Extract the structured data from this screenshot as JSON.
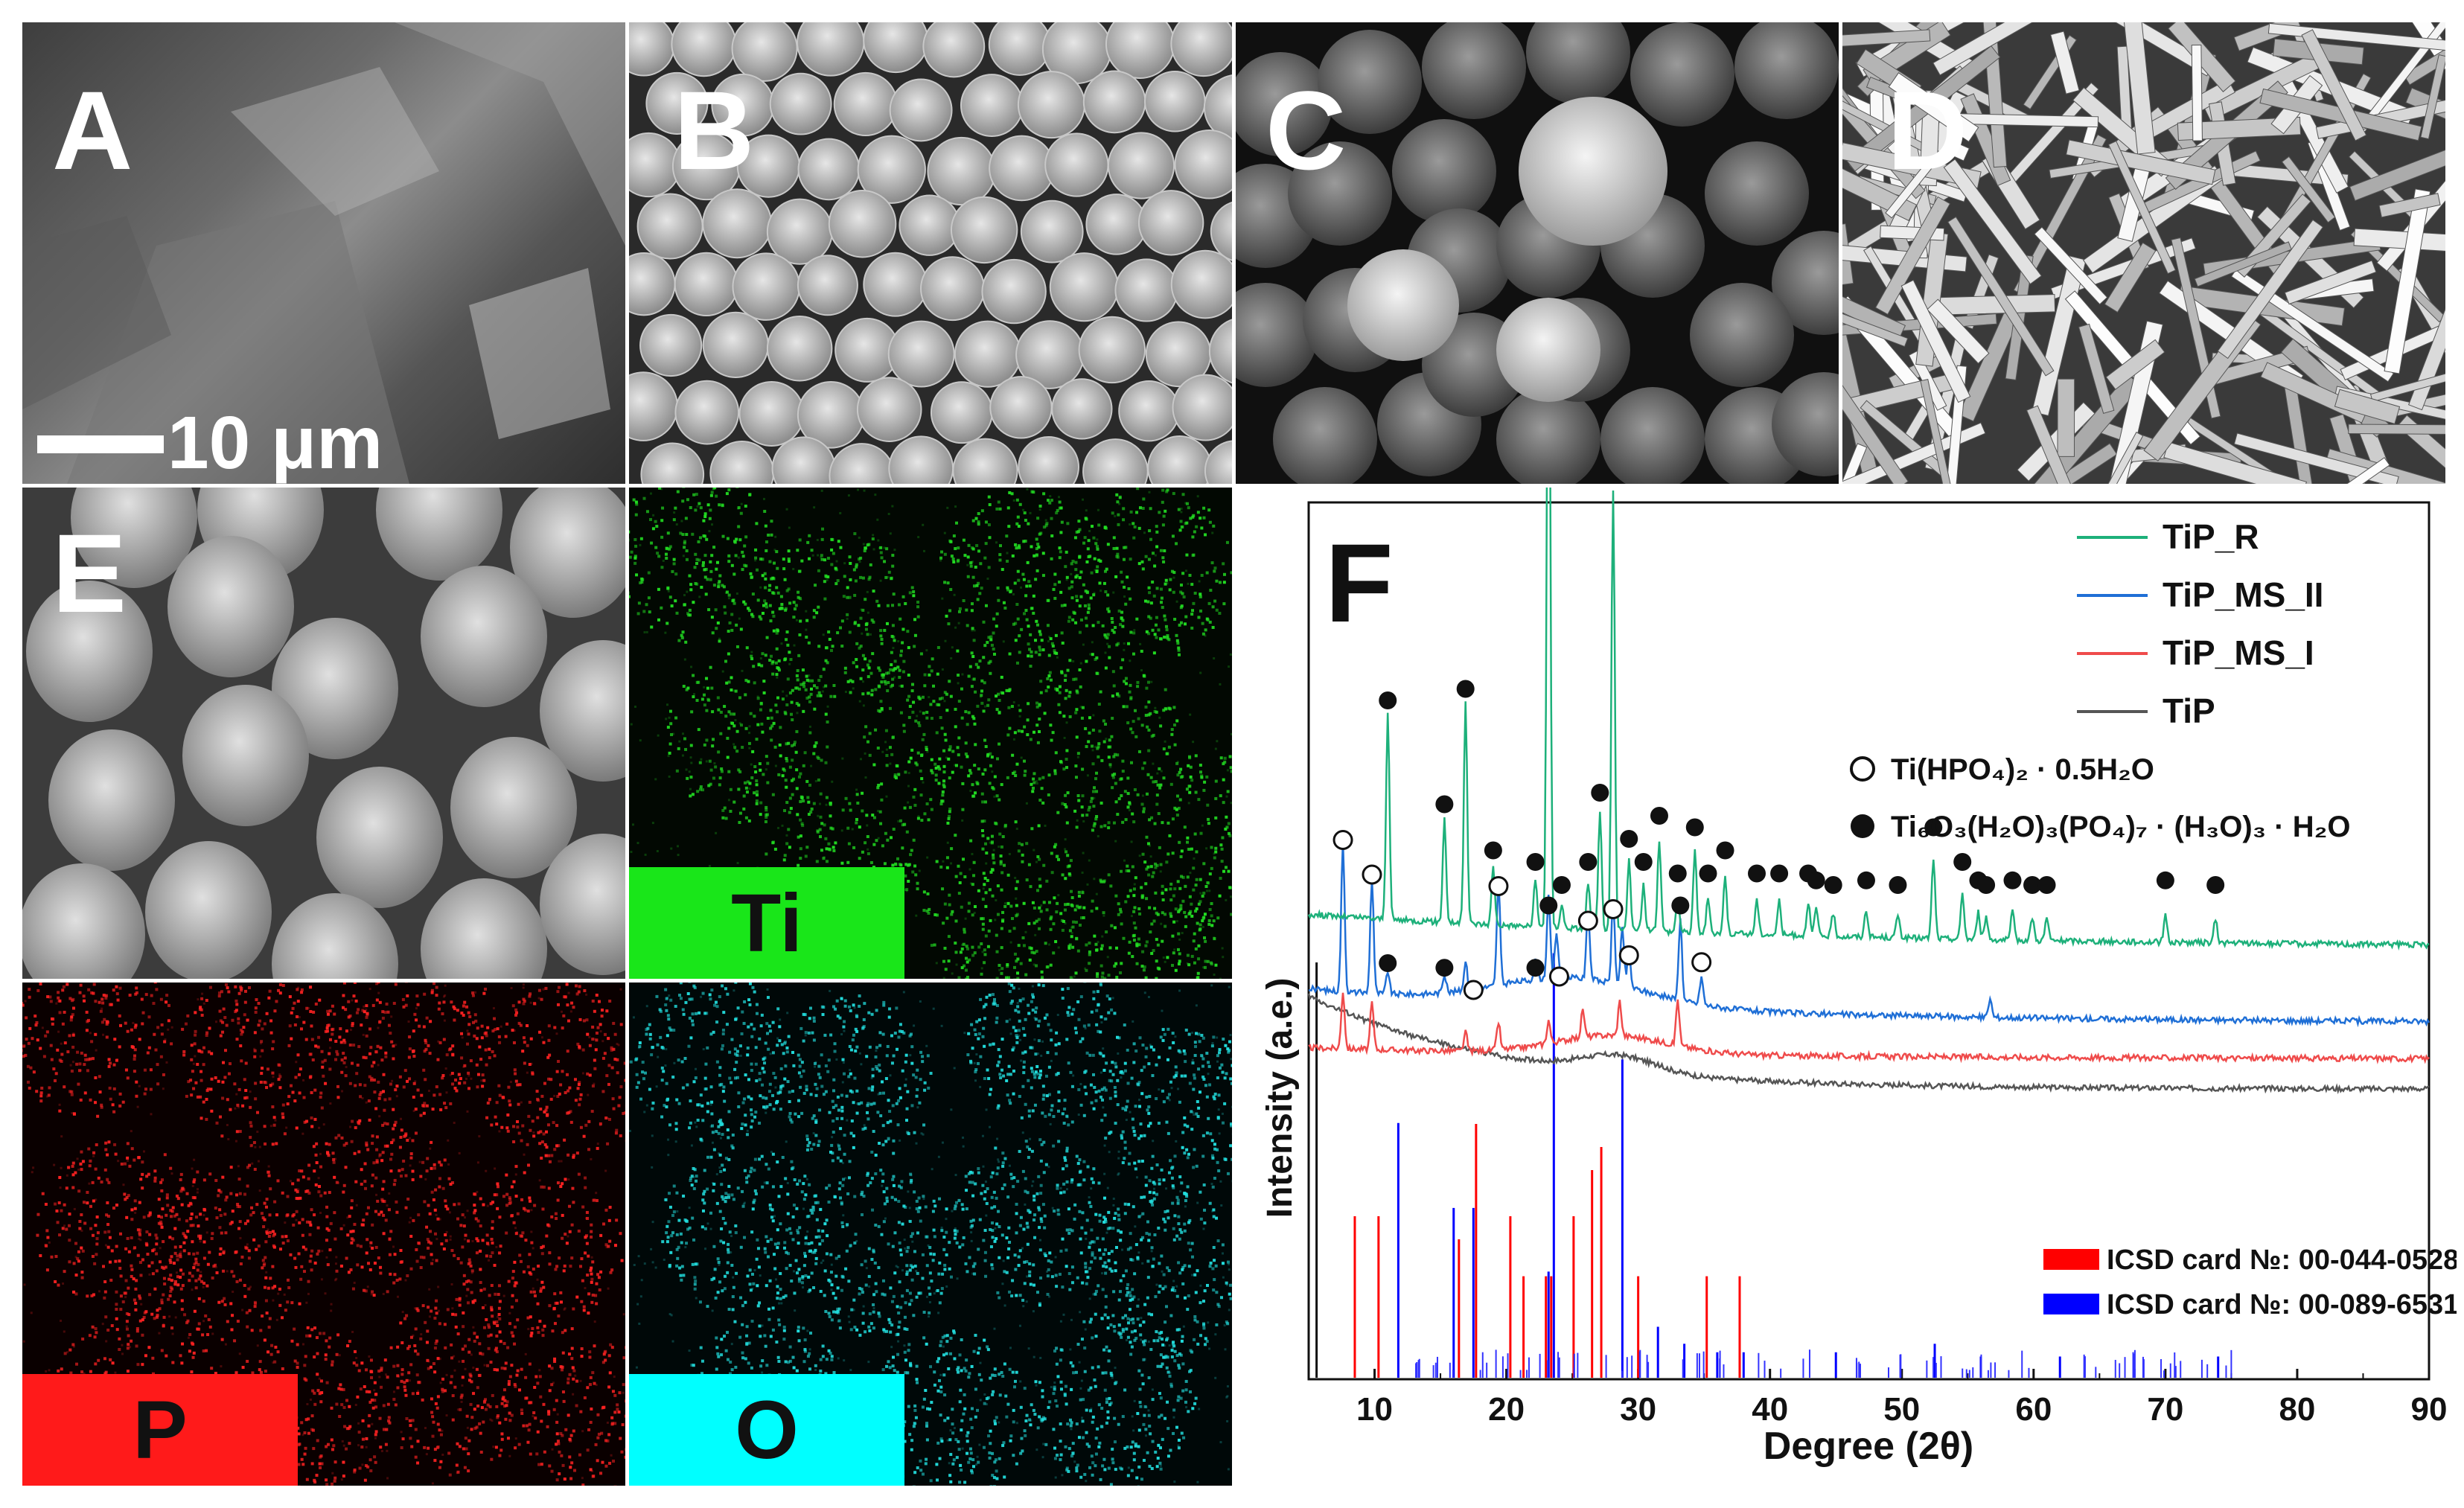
{
  "panels": {
    "A": {
      "label": "A",
      "scale_bar": "10 μm"
    },
    "B": {
      "label": "B"
    },
    "C": {
      "label": "C"
    },
    "D": {
      "label": "D"
    },
    "E": {
      "label": "E"
    },
    "ti_map": {
      "element": "Ti",
      "color": "#19e619"
    },
    "p_map": {
      "element": "P",
      "color": "#ff1a1a"
    },
    "o_map": {
      "element": "O",
      "color": "#00ffff"
    }
  },
  "chart_data": {
    "type": "line",
    "panel_label": "F",
    "xlabel": "Degree (2θ)",
    "ylabel": "Intensity (a.e.)",
    "xlim": [
      5,
      90
    ],
    "x_ticks": [
      10,
      20,
      30,
      40,
      50,
      60,
      70,
      80,
      90
    ],
    "x_tick_labels": [
      "10",
      "20",
      "30",
      "40",
      "50",
      "60",
      "70",
      "80",
      "90"
    ],
    "legend": [
      {
        "name": "TiP_R",
        "color": "#1db07a"
      },
      {
        "name": "TiP_MS_II",
        "color": "#1f6fd6"
      },
      {
        "name": "TiP_MS_I",
        "color": "#ef4b4b"
      },
      {
        "name": "TiP",
        "color": "#555555"
      }
    ],
    "phase_legend": [
      {
        "symbol": "open-circle",
        "text": "Ti(HPO₄)₂ · 0.5H₂O"
      },
      {
        "symbol": "filled-circle",
        "text": "Ti₆O₃(H₂O)₃(PO₄)₇ · (H₃O)₃ · H₂O"
      }
    ],
    "reference_legend": [
      {
        "text": "ICSD card №: 00-044-0528",
        "color": "#ff0000"
      },
      {
        "text": "ICSD card №: 00-089-6531",
        "color": "#0000ff"
      }
    ],
    "series": [
      {
        "name": "TiP_R",
        "baseline": 0.55,
        "peaks": [
          [
            11.0,
            0.9
          ],
          [
            15.3,
            0.45
          ],
          [
            16.9,
            0.95
          ],
          [
            19.0,
            0.25
          ],
          [
            22.2,
            0.2
          ],
          [
            23.2,
            3.25
          ],
          [
            24.2,
            0.1
          ],
          [
            26.2,
            0.2
          ],
          [
            27.1,
            0.5
          ],
          [
            28.1,
            1.9
          ],
          [
            29.3,
            0.3
          ],
          [
            30.4,
            0.2
          ],
          [
            31.6,
            0.4
          ],
          [
            33.0,
            0.15
          ],
          [
            34.3,
            0.35
          ],
          [
            35.3,
            0.15
          ],
          [
            36.6,
            0.25
          ],
          [
            39.0,
            0.15
          ],
          [
            40.7,
            0.15
          ],
          [
            42.9,
            0.15
          ],
          [
            43.5,
            0.12
          ],
          [
            44.8,
            0.1
          ],
          [
            47.3,
            0.12
          ],
          [
            49.7,
            0.1
          ],
          [
            52.4,
            0.35
          ],
          [
            54.6,
            0.2
          ],
          [
            55.8,
            0.12
          ],
          [
            56.4,
            0.1
          ],
          [
            58.4,
            0.12
          ],
          [
            59.9,
            0.1
          ],
          [
            61.0,
            0.1
          ],
          [
            70.0,
            0.12
          ],
          [
            73.8,
            0.1
          ]
        ]
      },
      {
        "name": "TiP_MS_II",
        "baseline": 0.35,
        "peaks": [
          [
            7.6,
            0.65
          ],
          [
            9.8,
            0.5
          ],
          [
            11.0,
            0.1
          ],
          [
            15.3,
            0.08
          ],
          [
            16.9,
            0.12
          ],
          [
            19.4,
            0.45
          ],
          [
            22.2,
            0.08
          ],
          [
            23.2,
            0.35
          ],
          [
            23.8,
            0.2
          ],
          [
            26.2,
            0.3
          ],
          [
            28.1,
            0.35
          ],
          [
            28.8,
            0.25
          ],
          [
            29.3,
            0.15
          ],
          [
            33.2,
            0.35
          ],
          [
            34.8,
            0.12
          ],
          [
            56.7,
            0.08
          ]
        ]
      },
      {
        "name": "TiP_MS_I",
        "baseline": 0.3,
        "peaks": [
          [
            7.6,
            0.25
          ],
          [
            9.8,
            0.2
          ],
          [
            16.9,
            0.08
          ],
          [
            19.4,
            0.12
          ],
          [
            23.2,
            0.1
          ],
          [
            25.8,
            0.12
          ],
          [
            28.6,
            0.15
          ],
          [
            33.0,
            0.2
          ]
        ]
      },
      {
        "name": "TiP",
        "baseline": 0.15,
        "peaks": [
          [
            28.5,
            0.12
          ]
        ]
      }
    ],
    "open_circle_markers": [
      7.6,
      9.8,
      17.5,
      19.4,
      24.0,
      26.2,
      28.1,
      29.3,
      34.8
    ],
    "filled_circle_markers_TiP_MS_II": [
      11.0,
      15.3,
      22.2,
      23.2,
      33.2
    ],
    "filled_circle_markers_TiP_R": [
      11.0,
      15.3,
      16.9,
      19.0,
      22.2,
      23.2,
      24.2,
      26.2,
      27.1,
      28.1,
      29.3,
      30.4,
      31.6,
      33.0,
      34.3,
      35.3,
      36.6,
      39.0,
      40.7,
      42.9,
      43.5,
      44.8,
      47.3,
      49.7,
      52.4,
      54.6,
      55.8,
      56.4,
      58.4,
      59.9,
      61.0,
      70.0,
      73.8
    ],
    "reference_red": [
      [
        8.5,
        0.35
      ],
      [
        10.3,
        0.35
      ],
      [
        16.4,
        0.3
      ],
      [
        17.7,
        0.55
      ],
      [
        20.3,
        0.35
      ],
      [
        21.3,
        0.22
      ],
      [
        23.0,
        0.22
      ],
      [
        23.4,
        0.22
      ],
      [
        25.1,
        0.35
      ],
      [
        26.5,
        0.45
      ],
      [
        27.2,
        0.5
      ],
      [
        30.0,
        0.22
      ],
      [
        35.2,
        0.22
      ],
      [
        37.7,
        0.22
      ]
    ],
    "reference_blue": [
      [
        11.8,
        0.6
      ],
      [
        16.0,
        0.4
      ],
      [
        17.5,
        0.4
      ],
      [
        23.6,
        1.0
      ],
      [
        28.8,
        0.75
      ],
      [
        23.2,
        0.25
      ],
      [
        31.5,
        0.12
      ],
      [
        33.5,
        0.08
      ],
      [
        36.0,
        0.06
      ],
      [
        38.0,
        0.06
      ],
      [
        45.0,
        0.06
      ],
      [
        52.5,
        0.08
      ],
      [
        56.0,
        0.05
      ],
      [
        62.0,
        0.05
      ],
      [
        74.0,
        0.05
      ]
    ]
  }
}
